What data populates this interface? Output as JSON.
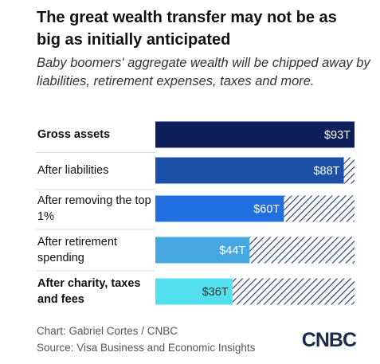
{
  "chart_data": {
    "type": "bar",
    "orientation": "horizontal",
    "title": "The great wealth transfer may not be as big as initially anticipated",
    "subtitle": "Baby boomers' aggregate wealth will be chipped away by liabilities, retirement expenses, taxes and more.",
    "categories": [
      "Gross assets",
      "After liabilities",
      "After removing the top 1%",
      "After retirement spending",
      "After charity, taxes and fees"
    ],
    "values": [
      93,
      88,
      60,
      44,
      36
    ],
    "value_labels": [
      "$93T",
      "$88T",
      "$60T",
      "$44T",
      "$36T"
    ],
    "colors": [
      "#0e1f5b",
      "#1b50a9",
      "#1f6fe0",
      "#47a7e0",
      "#52e0ec"
    ],
    "label_colors": [
      "#ffffff",
      "#ffffff",
      "#ffffff",
      "#ffffff",
      "#333333"
    ],
    "xlim": [
      0,
      93
    ],
    "credit": "Chart: Gabriel Cortes / CNBC",
    "source": "Source: Visa Business and Economic Insights",
    "logo": "CNBC"
  }
}
